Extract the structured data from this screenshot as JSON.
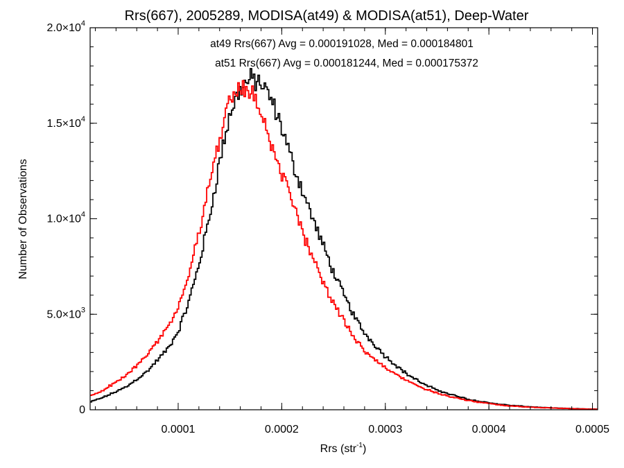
{
  "chart_data": {
    "type": "line",
    "title": "Rrs(667), 2005289, MODISA(at49) & MODISA(at51), Deep-Water",
    "xlabel": "Rrs (str",
    "xlabel_sup": "-1",
    "xlabel_close": ")",
    "ylabel": "Number of Observations",
    "xlim": [
      1.5e-05,
      0.000505
    ],
    "ylim": [
      0,
      20000
    ],
    "x_ticks": [
      {
        "value": 0.0001,
        "label": "0.0001"
      },
      {
        "value": 0.0002,
        "label": "0.0002"
      },
      {
        "value": 0.0003,
        "label": "0.0003"
      },
      {
        "value": 0.0004,
        "label": "0.0004"
      },
      {
        "value": 0.0005,
        "label": "0.0005"
      }
    ],
    "y_ticks": [
      {
        "value": 0,
        "mant": "0",
        "exp": ""
      },
      {
        "value": 5000,
        "mant": "5.0×10",
        "exp": "3"
      },
      {
        "value": 10000,
        "mant": "1.0×10",
        "exp": "4"
      },
      {
        "value": 15000,
        "mant": "1.5×10",
        "exp": "4"
      },
      {
        "value": 20000,
        "mant": "2.0×10",
        "exp": "4"
      }
    ],
    "x_minor_step": 2e-05,
    "y_minor_step": 1000,
    "grid": false,
    "annotations": [
      {
        "text": "at49 Rrs(667) Avg = 0.000191028, Med = 0.000184801",
        "color": "#000000"
      },
      {
        "text": "at51 Rrs(667) Avg = 0.000181244, Med = 0.000175372",
        "color": "#ff0000"
      }
    ],
    "series": [
      {
        "name": "at49",
        "color": "#000000",
        "x": [
          1.5e-05,
          3e-05,
          5e-05,
          7e-05,
          9e-05,
          0.0001,
          0.00011,
          0.00012,
          0.00013,
          0.00014,
          0.00015,
          0.00016,
          0.00017,
          0.00018,
          0.00019,
          0.0002,
          0.00021,
          0.00022,
          0.00023,
          0.00024,
          0.00025,
          0.00026,
          0.00027,
          0.00028,
          0.0003,
          0.00032,
          0.00034,
          0.00036,
          0.00038,
          0.0004,
          0.00042,
          0.00045,
          0.00048,
          0.000505
        ],
        "y": [
          400,
          700,
          1200,
          2000,
          3200,
          4100,
          5600,
          7600,
          10000,
          13000,
          15500,
          16800,
          17300,
          17100,
          16200,
          14800,
          13000,
          11500,
          10000,
          8600,
          7200,
          6000,
          4900,
          4000,
          2800,
          1900,
          1250,
          850,
          550,
          360,
          230,
          120,
          60,
          30
        ]
      },
      {
        "name": "at51",
        "color": "#ff0000",
        "x": [
          1.5e-05,
          3e-05,
          5e-05,
          7e-05,
          9e-05,
          0.0001,
          0.00011,
          0.00012,
          0.00013,
          0.00014,
          0.00015,
          0.00016,
          0.00017,
          0.00018,
          0.00019,
          0.0002,
          0.00021,
          0.00022,
          0.00023,
          0.00024,
          0.00025,
          0.00026,
          0.00027,
          0.00028,
          0.0003,
          0.00032,
          0.00034,
          0.00036,
          0.00038,
          0.0004,
          0.00042,
          0.00045,
          0.00048,
          0.000505
        ],
        "y": [
          700,
          1100,
          1800,
          2900,
          4300,
          5400,
          7000,
          9200,
          11800,
          14200,
          16200,
          16900,
          16700,
          15600,
          14000,
          12400,
          10800,
          9300,
          8000,
          6700,
          5600,
          4600,
          3800,
          3100,
          2200,
          1550,
          1050,
          720,
          480,
          320,
          200,
          110,
          55,
          25
        ]
      }
    ]
  }
}
